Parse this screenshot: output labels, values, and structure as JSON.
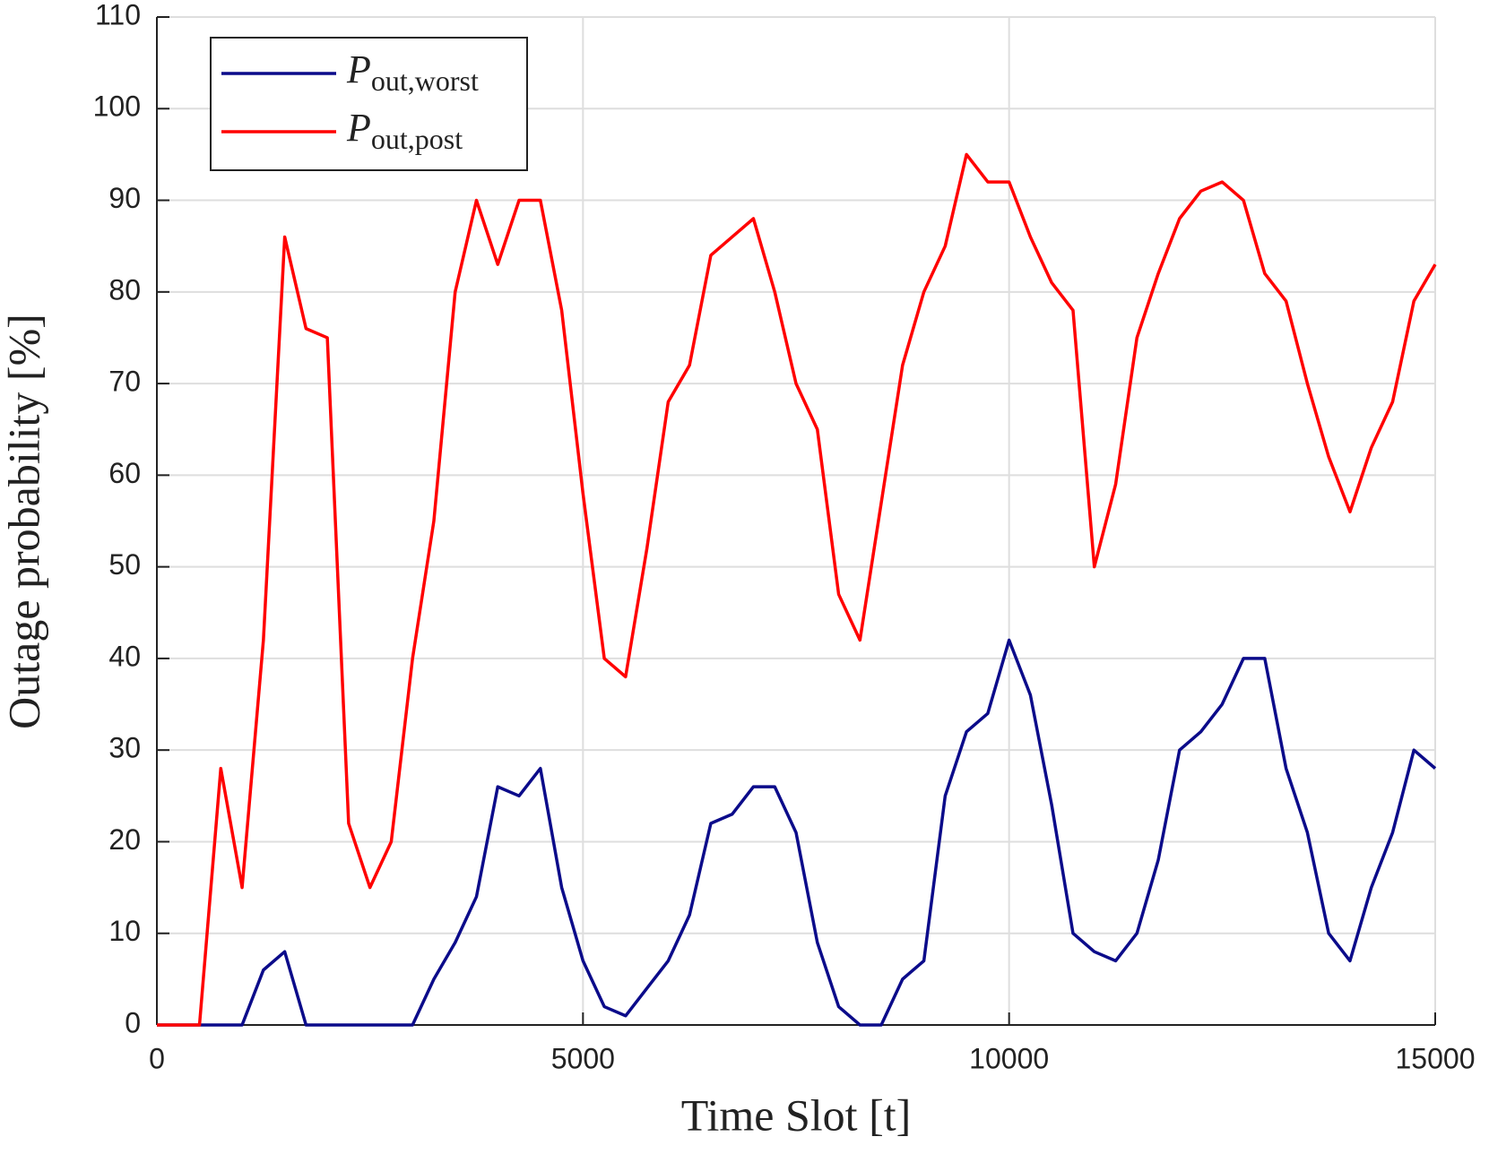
{
  "chart_data": {
    "type": "line",
    "xlabel": "Time Slot [t]",
    "ylabel": "Outage probability [%]",
    "x": [
      0,
      250,
      500,
      750,
      1000,
      1250,
      1500,
      1750,
      2000,
      2250,
      2500,
      2750,
      3000,
      3250,
      3500,
      3750,
      4000,
      4250,
      4500,
      4750,
      5000,
      5250,
      5500,
      5750,
      6000,
      6250,
      6500,
      6750,
      7000,
      7250,
      7500,
      7750,
      8000,
      8250,
      8500,
      8750,
      9000,
      9250,
      9500,
      9750,
      10000,
      10250,
      10500,
      10750,
      11000,
      11250,
      11500,
      11750,
      12000,
      12250,
      12500,
      12750,
      13000,
      13250,
      13500,
      13750,
      14000,
      14250,
      14500,
      14750,
      15000
    ],
    "series": [
      {
        "name": "Pout,worst",
        "color": "#0b0b8a",
        "values": [
          0,
          0,
          0,
          0,
          0,
          6,
          8,
          0,
          0,
          0,
          0,
          0,
          0,
          5,
          9,
          14,
          26,
          25,
          28,
          15,
          7,
          2,
          1,
          4,
          7,
          12,
          22,
          23,
          26,
          26,
          21,
          9,
          2,
          0,
          0,
          5,
          7,
          25,
          32,
          34,
          42,
          36,
          24,
          10,
          8,
          7,
          10,
          18,
          30,
          32,
          35,
          40,
          40,
          28,
          21,
          10,
          7,
          15,
          21,
          30,
          28
        ]
      },
      {
        "name": "Pout,post",
        "color": "#ff0000",
        "values": [
          0,
          0,
          0,
          28,
          15,
          42,
          86,
          76,
          75,
          22,
          15,
          20,
          40,
          55,
          80,
          90,
          83,
          90,
          90,
          78,
          58,
          40,
          38,
          52,
          68,
          72,
          84,
          86,
          88,
          80,
          70,
          65,
          47,
          42,
          57,
          72,
          80,
          85,
          95,
          92,
          92,
          86,
          81,
          78,
          50,
          59,
          75,
          82,
          88,
          91,
          92,
          90,
          82,
          79,
          70,
          62,
          56,
          63,
          68,
          79,
          83
        ]
      }
    ],
    "xlim": [
      0,
      15000
    ],
    "xticks": [
      0,
      5000,
      10000,
      15000
    ],
    "ylim": [
      0,
      110
    ],
    "yticks": [
      0,
      10,
      20,
      30,
      40,
      50,
      60,
      70,
      80,
      90,
      100,
      110
    ],
    "grid": true,
    "legend": "upper left"
  }
}
